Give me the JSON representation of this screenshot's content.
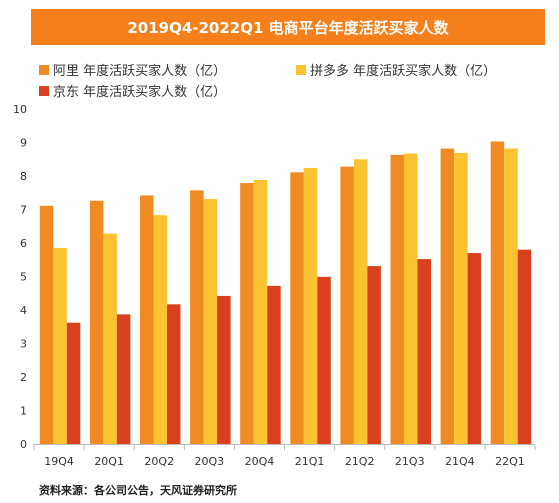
{
  "colors": {
    "title_bg": "#f47f1b",
    "alibaba": "#f08a22",
    "pdd": "#fbc332",
    "jd": "#d84020"
  },
  "chart_data": {
    "type": "bar",
    "title": "2019Q4-2022Q1 电商平台年度活跃买家人数",
    "categories": [
      "19Q4",
      "20Q1",
      "20Q2",
      "20Q3",
      "20Q4",
      "21Q1",
      "21Q2",
      "21Q3",
      "21Q4",
      "22Q1"
    ],
    "series": [
      {
        "name": "阿里 年度活跃买家人数（亿）",
        "values": [
          7.11,
          7.26,
          7.42,
          7.57,
          7.79,
          8.11,
          8.28,
          8.63,
          8.82,
          9.03
        ]
      },
      {
        "name": "拼多多 年度活跃买家人数（亿）",
        "values": [
          5.85,
          6.28,
          6.83,
          7.31,
          7.88,
          8.24,
          8.5,
          8.67,
          8.69,
          8.82
        ]
      },
      {
        "name": "京东 年度活跃买家人数（亿）",
        "values": [
          3.62,
          3.87,
          4.17,
          4.42,
          4.72,
          4.99,
          5.31,
          5.52,
          5.7,
          5.8
        ]
      }
    ],
    "yticks": [
      "0",
      "1",
      "2",
      "3",
      "4",
      "5",
      "6",
      "7",
      "8",
      "9",
      "10"
    ],
    "ylim": [
      0,
      10
    ],
    "legend_position": "top-left",
    "grid": false
  },
  "source": "资料来源：各公司公告，天风证券研究所"
}
